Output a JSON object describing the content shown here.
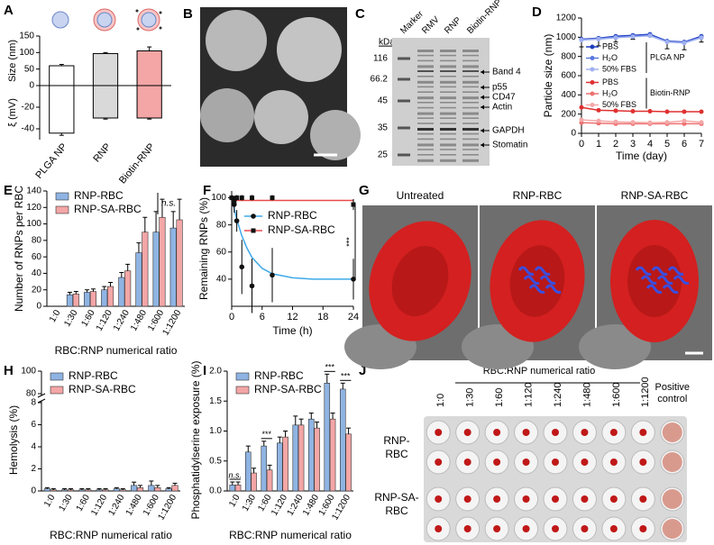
{
  "chart_data": [
    {
      "panel": "A",
      "type": "dual_bar",
      "categories": [
        "PLGA NP",
        "RNP",
        "Biotin-RNP"
      ],
      "series": [
        {
          "name": "Size (nm)",
          "values": [
            60,
            97,
            105
          ],
          "errors": [
            4,
            3,
            12
          ]
        },
        {
          "name": "ξ (mV)",
          "axis": "y2",
          "values": [
            -44,
            -30,
            -30
          ],
          "errors": [
            2,
            1,
            1
          ]
        }
      ],
      "colors": [
        "#ffffff",
        "#d9d9d9",
        "#f4a6a6"
      ],
      "ylim": [
        0,
        150
      ],
      "yticks": [
        0,
        50,
        100,
        150
      ],
      "y2lim": [
        -50,
        0
      ],
      "y2ticks": [
        -40,
        -20
      ]
    },
    {
      "panel": "D",
      "type": "line",
      "x": [
        0,
        1,
        2,
        3,
        4,
        5,
        6,
        7
      ],
      "xlabel": "Time (day)",
      "ylabel": "Particle size (nm)",
      "xlim": [
        0,
        7
      ],
      "xticks": [
        0,
        1,
        2,
        3,
        4,
        5,
        6,
        7
      ],
      "ylim": [
        0,
        1200
      ],
      "yticks": [
        0,
        200,
        400,
        600,
        800,
        1000,
        1200
      ],
      "legend_groups": [
        "PLGA NP",
        "Biotin-RNP"
      ],
      "series": [
        {
          "name": "PBS",
          "color": "#1f3fbf",
          "values": [
            980,
            990,
            1010,
            1020,
            1030,
            960,
            950,
            1010
          ],
          "errors": [
            80,
            80,
            60,
            40,
            20,
            80,
            80,
            60
          ]
        },
        {
          "name": "H₂O",
          "color": "#5b78e0",
          "values": [
            975,
            985,
            1000,
            1010,
            1020,
            955,
            945,
            1000
          ]
        },
        {
          "name": "50% FBS",
          "color": "#9fb0f0",
          "values": [
            970,
            980,
            995,
            1005,
            1015,
            950,
            940,
            995
          ]
        },
        {
          "name": "PBS",
          "color": "#e03030",
          "values": [
            270,
            240,
            235,
            230,
            230,
            225,
            225,
            225
          ]
        },
        {
          "name": "H₂O",
          "color": "#ee7070",
          "values": [
            110,
            105,
            100,
            100,
            100,
            100,
            100,
            100
          ]
        },
        {
          "name": "50% FBS",
          "color": "#f4a8a8",
          "values": [
            140,
            130,
            120,
            115,
            110,
            115,
            130,
            115
          ]
        }
      ]
    },
    {
      "panel": "E",
      "type": "grouped_bar",
      "categories": [
        "1:0",
        "1:30",
        "1:60",
        "1:120",
        "1:240",
        "1:480",
        "1:600",
        "1:1200"
      ],
      "xlabel": "RBC:RNP numerical ratio",
      "ylabel": "Number of RNPs per RBC",
      "ylim": [
        0,
        140
      ],
      "yticks": [
        0,
        20,
        40,
        60,
        80,
        100,
        120,
        140
      ],
      "annotations": [
        "n.s."
      ],
      "series": [
        {
          "name": "RNP-RBC",
          "color": "#8fb4e3",
          "values": [
            0,
            14,
            17,
            20,
            35,
            65,
            90,
            95
          ],
          "errors": [
            0,
            3,
            3,
            4,
            6,
            12,
            25,
            20
          ]
        },
        {
          "name": "RNP-SA-RBC",
          "color": "#f4a6a6",
          "values": [
            0,
            15,
            18,
            24,
            43,
            90,
            108,
            105
          ],
          "errors": [
            0,
            3,
            3,
            5,
            8,
            18,
            22,
            25
          ]
        }
      ]
    },
    {
      "panel": "F",
      "type": "scatter",
      "xlabel": "Time (h)",
      "ylabel": "Remaining RNPs (%)",
      "xlim": [
        0,
        24
      ],
      "xticks": [
        0,
        6,
        12,
        18,
        24
      ],
      "ylim": [
        20,
        105
      ],
      "yticks": [
        40,
        60,
        80,
        100
      ],
      "x": [
        0,
        0.5,
        1,
        2,
        4,
        8,
        24
      ],
      "fit_x": [
        0,
        1,
        2,
        3,
        4,
        6,
        8,
        12,
        16,
        20,
        24
      ],
      "annotations": [
        "***"
      ],
      "series": [
        {
          "name": "RNP-RBC",
          "color": "#3fa9e8",
          "marker": "circle",
          "values": [
            100,
            95,
            83,
            49,
            35,
            43,
            40
          ],
          "errors": [
            3,
            6,
            8,
            20,
            20,
            20,
            15
          ],
          "fit": [
            100,
            84,
            72,
            63,
            56,
            48,
            44,
            41,
            40,
            40,
            40
          ]
        },
        {
          "name": "RNP-SA-RBC",
          "color": "#e84a4a",
          "marker": "square",
          "values": [
            100,
            97,
            100,
            100,
            100,
            100,
            95
          ],
          "errors": [
            2,
            3,
            2,
            2,
            2,
            2,
            4
          ],
          "fit": [
            98,
            98,
            98,
            98,
            98,
            98,
            98,
            98,
            98,
            98,
            98
          ]
        }
      ]
    },
    {
      "panel": "H",
      "type": "grouped_bar",
      "categories": [
        "1:0",
        "1:30",
        "1:60",
        "1:120",
        "1:240",
        "1:480",
        "1:600",
        "1:1200"
      ],
      "xlabel": "RBC:RNP numerical ratio",
      "ylabel": "Hemolysis (%)",
      "ylim": [
        0,
        100
      ],
      "ybreak": [
        8,
        80
      ],
      "yticks": [
        0,
        2,
        4,
        6,
        8,
        80,
        100
      ],
      "series": [
        {
          "name": "RNP-RBC",
          "color": "#8fb4e3",
          "values": [
            0.2,
            0.1,
            0.1,
            0.1,
            0.2,
            0.5,
            0.5,
            0.2
          ],
          "errors": [
            0.1,
            0.1,
            0.1,
            0.1,
            0.1,
            0.3,
            0.4,
            0.1
          ]
        },
        {
          "name": "RNP-SA-RBC",
          "color": "#f4a6a6",
          "values": [
            0.1,
            0.1,
            0.1,
            0.1,
            0.1,
            0.3,
            0.3,
            0.5
          ],
          "errors": [
            0.1,
            0.1,
            0.1,
            0.1,
            0.1,
            0.2,
            0.2,
            0.2
          ]
        }
      ]
    },
    {
      "panel": "I",
      "type": "grouped_bar",
      "categories": [
        "1:0",
        "1:30",
        "1:60",
        "1:120",
        "1:240",
        "1:480",
        "1:600",
        "1:1200"
      ],
      "xlabel": "RBC:RNP numerical ratio",
      "ylabel": "Phosphatidylserine exposure (%)",
      "ylim": [
        0,
        2
      ],
      "yticks": [
        {
          "value": 0,
          "label": "0.0"
        },
        {
          "value": 0.5,
          "label": "0.5"
        },
        {
          "value": 1,
          "label": "1.0"
        },
        {
          "value": 1.5,
          "label": "1.5"
        },
        {
          "value": 2,
          "label": "2.0"
        }
      ],
      "annotations": [
        "n.s.",
        "***",
        "***",
        "***"
      ],
      "series": [
        {
          "name": "RNP-RBC",
          "color": "#8fb4e3",
          "values": [
            0.1,
            0.65,
            0.75,
            0.8,
            1.1,
            1.2,
            1.8,
            1.7
          ],
          "errors": [
            0.05,
            0.1,
            0.08,
            0.1,
            0.15,
            0.1,
            0.15,
            0.1
          ]
        },
        {
          "name": "RNP-SA-RBC",
          "color": "#f4a6a6",
          "values": [
            0.1,
            0.3,
            0.35,
            0.9,
            1.1,
            1.05,
            1.2,
            0.95
          ],
          "errors": [
            0.05,
            0.08,
            0.08,
            0.1,
            0.1,
            0.1,
            0.1,
            0.1
          ]
        }
      ]
    }
  ],
  "panel_B": {
    "label": "B"
  },
  "panel_C": {
    "label": "C",
    "kda": "kDa",
    "lanes": [
      "Marker",
      "RMV",
      "RNP",
      "Biotin-RNP"
    ],
    "markers": [
      "116",
      "66.2",
      "45",
      "35",
      "25"
    ],
    "bands": [
      "Band 4",
      "p55",
      "CD47",
      "Actin",
      "GAPDH",
      "Stomatin"
    ]
  },
  "panel_G": {
    "label": "G",
    "titles": [
      "Untreated",
      "RNP-RBC",
      "RNP-SA-RBC"
    ]
  },
  "panel_J": {
    "label": "J",
    "header": "RBC:RNP numerical ratio",
    "columns": [
      "1:0",
      "1:30",
      "1:60",
      "1:120",
      "1:240",
      "1:480",
      "1:600",
      "1:1200"
    ],
    "positive_control": [
      "Positive",
      "control"
    ],
    "rows": [
      [
        "RNP-",
        "RBC"
      ],
      [
        "RNP-SA-",
        "RBC"
      ]
    ]
  }
}
